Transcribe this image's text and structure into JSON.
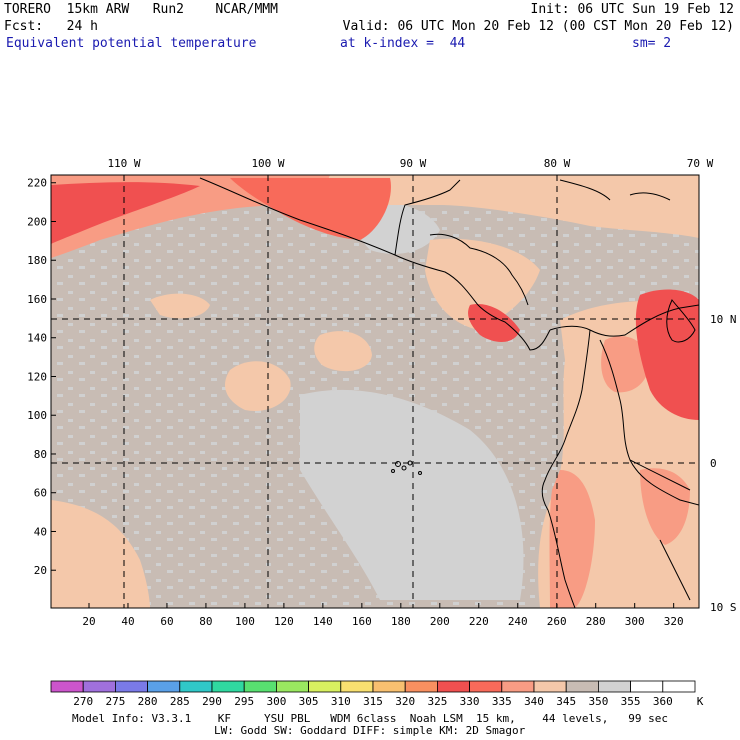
{
  "header": {
    "line1_left": "TORERO  15km ARW   Run2    NCAR/MMM",
    "line1_right": "Init: 06 UTC Sun 19 Feb 12",
    "line2_left": "Fcst:   24 h",
    "line2_right": "Valid: 06 UTC Mon 20 Feb 12 (00 CST Mon 20 Feb 12)",
    "line3_field": "Equivalent potential temperature",
    "line3_level": "at k-index =  44",
    "line3_sm": "sm= 2"
  },
  "map": {
    "lon_labels": [
      "110 W",
      "100 W",
      "90 W",
      "80 W",
      "70 W"
    ],
    "lat_labels": [
      "10 N",
      "0",
      "10 S"
    ],
    "y_ticks": [
      "20",
      "40",
      "60",
      "80",
      "100",
      "120",
      "140",
      "160",
      "180",
      "200",
      "220"
    ],
    "x_ticks": [
      "20",
      "40",
      "60",
      "80",
      "100",
      "120",
      "140",
      "160",
      "180",
      "200",
      "220",
      "240",
      "260",
      "280",
      "300",
      "320"
    ],
    "x_grid_values": [
      20,
      40,
      60,
      80,
      100,
      120,
      140,
      160,
      180,
      200,
      220,
      240,
      260,
      280,
      300,
      320
    ],
    "y_grid_values": [
      20,
      40,
      60,
      80,
      100,
      120,
      140,
      160,
      180,
      200,
      220
    ]
  },
  "colorbar": {
    "labels": [
      "270",
      "275",
      "280",
      "285",
      "290",
      "295",
      "300",
      "305",
      "310",
      "315",
      "320",
      "325",
      "330",
      "335",
      "340",
      "345",
      "350",
      "355",
      "360"
    ],
    "unit": "K",
    "colors": [
      "#cc55cc",
      "#a070dd",
      "#7a7ae8",
      "#5aa0e8",
      "#30c8c8",
      "#30d8a0",
      "#58e070",
      "#9ae860",
      "#d8f060",
      "#f8e070",
      "#f8c070",
      "#f89060",
      "#f05050",
      "#f86a5a",
      "#f89c84",
      "#f4c8aa",
      "#c8bcb4",
      "#d2d2d2",
      "#ffffff"
    ]
  },
  "footer": {
    "line1": "Model Info: V3.3.1    KF     YSU PBL   WDM 6class  Noah LSM  15 km,    44 levels,   99 sec",
    "line2": "LW: Godd SW: Goddard DIFF: simple KM: 2D Smagor"
  }
}
